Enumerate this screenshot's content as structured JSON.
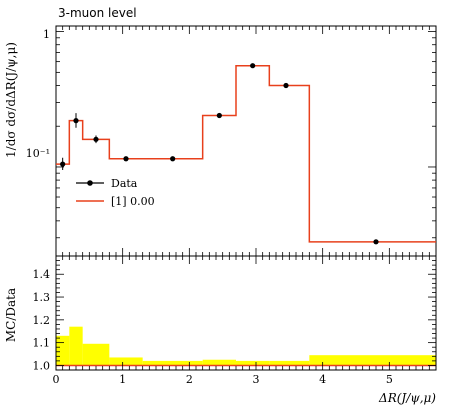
{
  "chart_data": [
    {
      "type": "line",
      "title": "3-muon level",
      "ylabel": "1/dσ dσ/dΔR(J/ψ,μ)",
      "yscale": "log",
      "ylim": [
        0.022,
        1.1
      ],
      "xlim": [
        0,
        5.7
      ],
      "y_tick_labels": [
        "1",
        "10⁻¹"
      ],
      "legend_position": "left",
      "series": [
        {
          "name": "Data",
          "kind": "points",
          "x": [
            0.1,
            0.3,
            0.6,
            1.05,
            1.75,
            2.45,
            2.95,
            3.45,
            4.8
          ],
          "y": [
            0.105,
            0.22,
            0.16,
            0.115,
            0.115,
            0.24,
            0.56,
            0.4,
            0.028
          ],
          "yerr_low": [
            0.095,
            0.195,
            0.15,
            0.112,
            0.112,
            0.235,
            0.55,
            0.395,
            0.0275
          ],
          "yerr_high": [
            0.117,
            0.25,
            0.171,
            0.118,
            0.118,
            0.245,
            0.57,
            0.405,
            0.0285
          ]
        },
        {
          "name": "[1] 0.00",
          "kind": "step",
          "bin_edges": [
            0,
            0.2,
            0.4,
            0.8,
            1.3,
            2.2,
            2.7,
            3.2,
            3.8,
            5.7
          ],
          "values": [
            0.105,
            0.22,
            0.16,
            0.115,
            0.115,
            0.24,
            0.56,
            0.4,
            0.028
          ]
        }
      ]
    },
    {
      "type": "area",
      "ylabel": "MC/Data",
      "xlabel": "ΔR(J/ψ,μ)",
      "ylim": [
        0.98,
        1.48
      ],
      "xlim": [
        0,
        5.7
      ],
      "y_ticks": [
        1.0,
        1.1,
        1.2,
        1.3,
        1.4
      ],
      "x_ticks": [
        0,
        1,
        2,
        3,
        4,
        5
      ],
      "band": {
        "color": "#ffff00",
        "bin_edges": [
          0,
          0.2,
          0.4,
          0.8,
          1.3,
          2.2,
          2.7,
          3.2,
          3.8,
          5.7
        ],
        "upper": [
          1.13,
          1.17,
          1.095,
          1.035,
          1.02,
          1.025,
          1.02,
          1.02,
          1.045
        ],
        "lower": [
          1.0,
          1.0,
          1.0,
          1.0,
          1.0,
          1.0,
          1.0,
          1.0,
          1.0
        ]
      },
      "reference_line": 1.0
    }
  ],
  "colors": {
    "data": "#000000",
    "mc": "#e8401c",
    "band": "#ffff00"
  }
}
